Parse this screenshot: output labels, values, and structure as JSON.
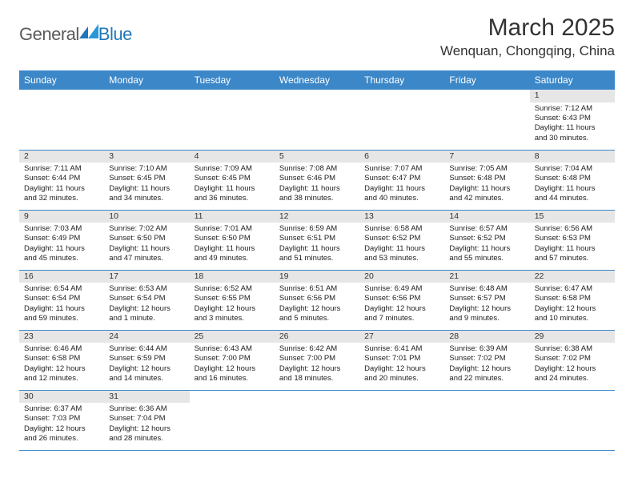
{
  "logo": {
    "text1": "General",
    "text2": "Blue",
    "color1": "#5a5a5a",
    "color2": "#2176b8",
    "mark_color": "#2176b8"
  },
  "title": "March 2025",
  "location": "Wenquan, Chongqing, China",
  "colors": {
    "header_bg": "#3b87c8",
    "header_fg": "#ffffff",
    "daynum_bg": "#e6e6e6",
    "grid_line": "#3b87c8",
    "text": "#222222"
  },
  "fonts": {
    "title_size": 30,
    "location_size": 17,
    "dayhead_size": 12,
    "cell_size": 9.5
  },
  "day_headers": [
    "Sunday",
    "Monday",
    "Tuesday",
    "Wednesday",
    "Thursday",
    "Friday",
    "Saturday"
  ],
  "weeks": [
    [
      null,
      null,
      null,
      null,
      null,
      null,
      {
        "n": "1",
        "sr": "7:12 AM",
        "ss": "6:43 PM",
        "dl": "11 hours and 30 minutes."
      }
    ],
    [
      {
        "n": "2",
        "sr": "7:11 AM",
        "ss": "6:44 PM",
        "dl": "11 hours and 32 minutes."
      },
      {
        "n": "3",
        "sr": "7:10 AM",
        "ss": "6:45 PM",
        "dl": "11 hours and 34 minutes."
      },
      {
        "n": "4",
        "sr": "7:09 AM",
        "ss": "6:45 PM",
        "dl": "11 hours and 36 minutes."
      },
      {
        "n": "5",
        "sr": "7:08 AM",
        "ss": "6:46 PM",
        "dl": "11 hours and 38 minutes."
      },
      {
        "n": "6",
        "sr": "7:07 AM",
        "ss": "6:47 PM",
        "dl": "11 hours and 40 minutes."
      },
      {
        "n": "7",
        "sr": "7:05 AM",
        "ss": "6:48 PM",
        "dl": "11 hours and 42 minutes."
      },
      {
        "n": "8",
        "sr": "7:04 AM",
        "ss": "6:48 PM",
        "dl": "11 hours and 44 minutes."
      }
    ],
    [
      {
        "n": "9",
        "sr": "7:03 AM",
        "ss": "6:49 PM",
        "dl": "11 hours and 45 minutes."
      },
      {
        "n": "10",
        "sr": "7:02 AM",
        "ss": "6:50 PM",
        "dl": "11 hours and 47 minutes."
      },
      {
        "n": "11",
        "sr": "7:01 AM",
        "ss": "6:50 PM",
        "dl": "11 hours and 49 minutes."
      },
      {
        "n": "12",
        "sr": "6:59 AM",
        "ss": "6:51 PM",
        "dl": "11 hours and 51 minutes."
      },
      {
        "n": "13",
        "sr": "6:58 AM",
        "ss": "6:52 PM",
        "dl": "11 hours and 53 minutes."
      },
      {
        "n": "14",
        "sr": "6:57 AM",
        "ss": "6:52 PM",
        "dl": "11 hours and 55 minutes."
      },
      {
        "n": "15",
        "sr": "6:56 AM",
        "ss": "6:53 PM",
        "dl": "11 hours and 57 minutes."
      }
    ],
    [
      {
        "n": "16",
        "sr": "6:54 AM",
        "ss": "6:54 PM",
        "dl": "11 hours and 59 minutes."
      },
      {
        "n": "17",
        "sr": "6:53 AM",
        "ss": "6:54 PM",
        "dl": "12 hours and 1 minute."
      },
      {
        "n": "18",
        "sr": "6:52 AM",
        "ss": "6:55 PM",
        "dl": "12 hours and 3 minutes."
      },
      {
        "n": "19",
        "sr": "6:51 AM",
        "ss": "6:56 PM",
        "dl": "12 hours and 5 minutes."
      },
      {
        "n": "20",
        "sr": "6:49 AM",
        "ss": "6:56 PM",
        "dl": "12 hours and 7 minutes."
      },
      {
        "n": "21",
        "sr": "6:48 AM",
        "ss": "6:57 PM",
        "dl": "12 hours and 9 minutes."
      },
      {
        "n": "22",
        "sr": "6:47 AM",
        "ss": "6:58 PM",
        "dl": "12 hours and 10 minutes."
      }
    ],
    [
      {
        "n": "23",
        "sr": "6:46 AM",
        "ss": "6:58 PM",
        "dl": "12 hours and 12 minutes."
      },
      {
        "n": "24",
        "sr": "6:44 AM",
        "ss": "6:59 PM",
        "dl": "12 hours and 14 minutes."
      },
      {
        "n": "25",
        "sr": "6:43 AM",
        "ss": "7:00 PM",
        "dl": "12 hours and 16 minutes."
      },
      {
        "n": "26",
        "sr": "6:42 AM",
        "ss": "7:00 PM",
        "dl": "12 hours and 18 minutes."
      },
      {
        "n": "27",
        "sr": "6:41 AM",
        "ss": "7:01 PM",
        "dl": "12 hours and 20 minutes."
      },
      {
        "n": "28",
        "sr": "6:39 AM",
        "ss": "7:02 PM",
        "dl": "12 hours and 22 minutes."
      },
      {
        "n": "29",
        "sr": "6:38 AM",
        "ss": "7:02 PM",
        "dl": "12 hours and 24 minutes."
      }
    ],
    [
      {
        "n": "30",
        "sr": "6:37 AM",
        "ss": "7:03 PM",
        "dl": "12 hours and 26 minutes."
      },
      {
        "n": "31",
        "sr": "6:36 AM",
        "ss": "7:04 PM",
        "dl": "12 hours and 28 minutes."
      },
      null,
      null,
      null,
      null,
      null
    ]
  ],
  "labels": {
    "sunrise": "Sunrise: ",
    "sunset": "Sunset: ",
    "daylight": "Daylight: "
  }
}
